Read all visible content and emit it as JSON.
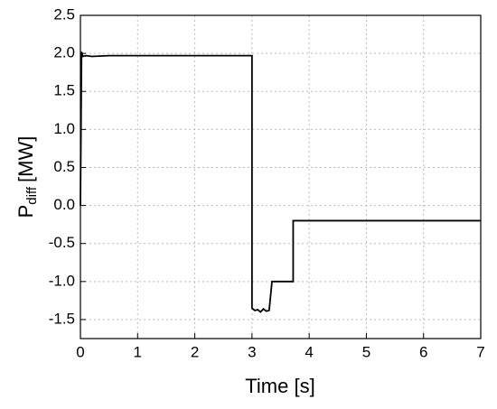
{
  "chart_data": {
    "type": "line",
    "xlabel": "Time [s]",
    "ylabel": {
      "main": "P",
      "sub": "diff",
      "unit": "[MW]"
    },
    "x": [
      0,
      0.02,
      0.04,
      0.1,
      0.2,
      0.5,
      3.0,
      3.0,
      3.05,
      3.1,
      3.15,
      3.2,
      3.25,
      3.3,
      3.35,
      3.4,
      3.6,
      3.72,
      3.72,
      3.75,
      7.0
    ],
    "values": [
      0.0,
      2.02,
      1.96,
      1.97,
      1.96,
      1.97,
      1.97,
      -1.35,
      -1.38,
      -1.37,
      -1.4,
      -1.36,
      -1.39,
      -1.38,
      -1.0,
      -1.0,
      -1.0,
      -1.0,
      -0.2,
      -0.2,
      -0.2
    ],
    "color": "#000000",
    "xlim": [
      0,
      7
    ],
    "xticks": [
      0,
      1,
      2,
      3,
      4,
      5,
      6,
      7
    ],
    "ylim": [
      -1.75,
      2.5
    ],
    "yticks": [
      {
        "value": -1.5,
        "label": "-1.5"
      },
      {
        "value": -1,
        "label": "-1.0"
      },
      {
        "value": -0.5,
        "label": "-0.5"
      },
      {
        "value": 0,
        "label": "0.0"
      },
      0.5,
      {
        "value": 1,
        "label": "1.0"
      },
      1.5,
      {
        "value": 2,
        "label": "2.0"
      },
      2.5
    ],
    "grid": true
  }
}
